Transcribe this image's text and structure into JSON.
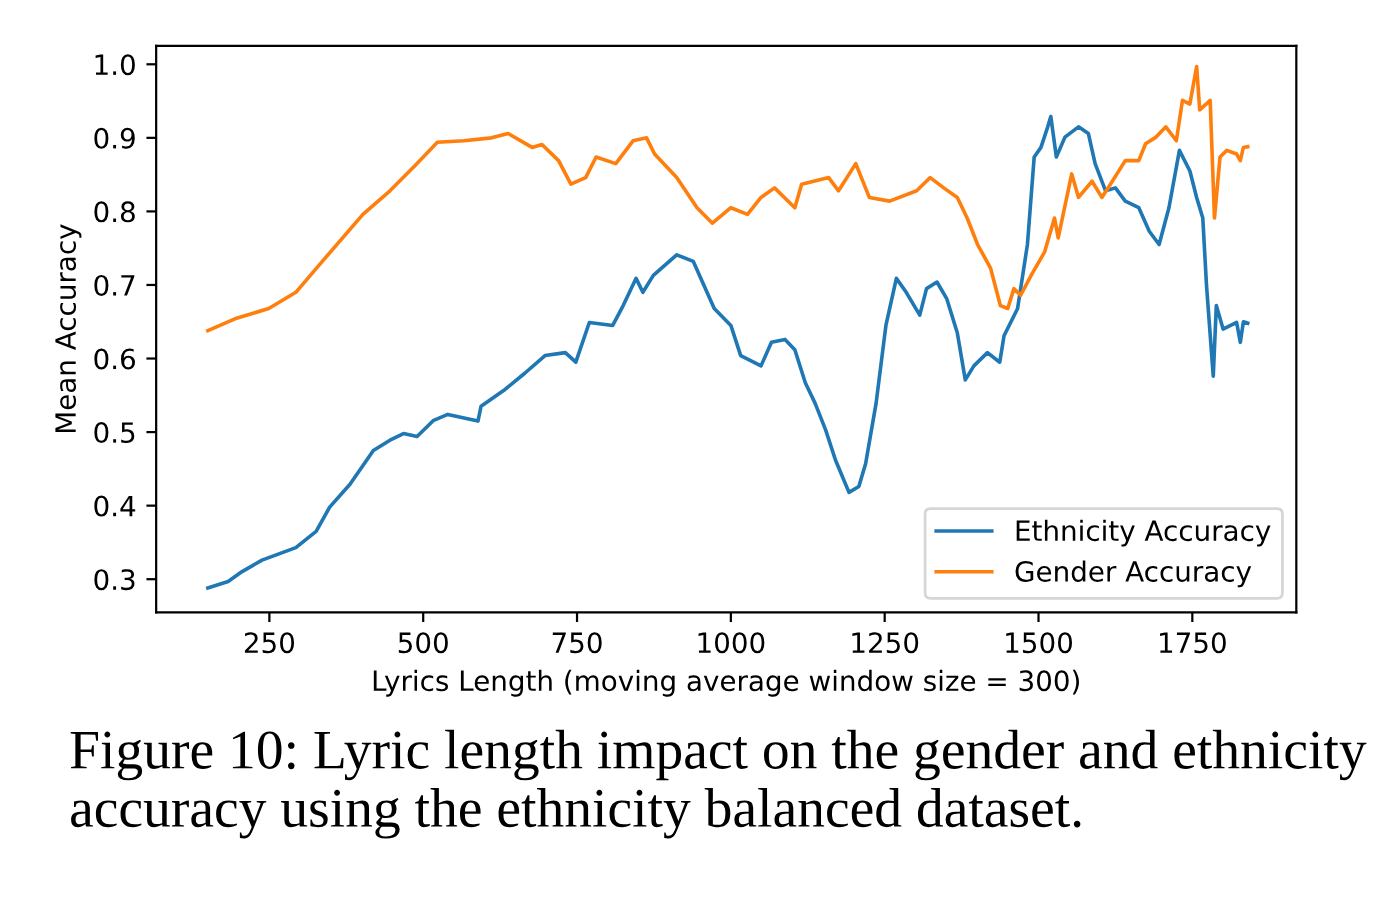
{
  "chart_data": {
    "type": "line",
    "xlabel": "Lyrics Length (moving average window size = 300)",
    "ylabel": "Mean Accuracy",
    "annotations": [
      "Figure 10: Lyric length impact on the gender and ethnicity accuracy using the ethnicity balanced dataset."
    ],
    "xlim": [
      66,
      1919
    ],
    "xticks": [
      250,
      500,
      750,
      1000,
      1250,
      1500,
      1750
    ],
    "ylim": [
      0.255,
      1.025
    ],
    "yticks": [
      {
        "value": 0.3,
        "label": "0.3"
      },
      {
        "value": 0.4,
        "label": "0.4"
      },
      {
        "value": 0.5,
        "label": "0.5"
      },
      {
        "value": 0.6,
        "label": "0.6"
      },
      {
        "value": 0.7,
        "label": "0.7"
      },
      {
        "value": 0.8,
        "label": "0.8"
      },
      {
        "value": 0.9,
        "label": "0.9"
      },
      {
        "value": 1.0,
        "label": "1.0"
      }
    ],
    "grid": false,
    "legend": "bottom right",
    "marker": "none",
    "line_style": "solid",
    "series": [
      {
        "name": "Ethnicity Accuracy",
        "color": "#1f77b4",
        "x": [
          150,
          183,
          205,
          238,
          293,
          326,
          348,
          381,
          419,
          446,
          468,
          490,
          517,
          540,
          589,
          594,
          633,
          665,
          698,
          731,
          748,
          770,
          808,
          825,
          846,
          857,
          874,
          912,
          939,
          973,
          1000,
          1016,
          1049,
          1066,
          1088,
          1104,
          1121,
          1137,
          1154,
          1170,
          1192,
          1208,
          1219,
          1236,
          1252,
          1269,
          1285,
          1307,
          1318,
          1335,
          1351,
          1368,
          1381,
          1395,
          1417,
          1437,
          1444,
          1466,
          1482,
          1493,
          1504,
          1515,
          1520,
          1529,
          1543,
          1565,
          1581,
          1592,
          1609,
          1625,
          1641,
          1663,
          1680,
          1696,
          1712,
          1729,
          1746,
          1757,
          1767,
          1773,
          1784,
          1789,
          1800,
          1822,
          1828,
          1833,
          1840
        ],
        "values": [
          0.288,
          0.297,
          0.31,
          0.326,
          0.343,
          0.365,
          0.398,
          0.429,
          0.475,
          0.489,
          0.498,
          0.494,
          0.516,
          0.524,
          0.515,
          0.535,
          0.558,
          0.58,
          0.604,
          0.608,
          0.595,
          0.649,
          0.645,
          0.672,
          0.709,
          0.69,
          0.713,
          0.741,
          0.732,
          0.668,
          0.645,
          0.604,
          0.59,
          0.622,
          0.626,
          0.612,
          0.567,
          0.539,
          0.503,
          0.462,
          0.418,
          0.426,
          0.457,
          0.539,
          0.645,
          0.709,
          0.69,
          0.659,
          0.695,
          0.704,
          0.681,
          0.635,
          0.571,
          0.59,
          0.608,
          0.595,
          0.631,
          0.668,
          0.755,
          0.874,
          0.887,
          0.915,
          0.929,
          0.874,
          0.901,
          0.915,
          0.906,
          0.865,
          0.828,
          0.832,
          0.814,
          0.805,
          0.773,
          0.755,
          0.805,
          0.883,
          0.855,
          0.819,
          0.791,
          0.7,
          0.576,
          0.672,
          0.64,
          0.649,
          0.622,
          0.65,
          0.648
        ]
      },
      {
        "name": "Gender Accuracy",
        "color": "#ff7f0e",
        "x": [
          150,
          194,
          249,
          293,
          336,
          402,
          446,
          490,
          523,
          566,
          611,
          638,
          677,
          693,
          720,
          740,
          764,
          781,
          813,
          841,
          863,
          876,
          912,
          945,
          970,
          1000,
          1027,
          1049,
          1071,
          1104,
          1115,
          1159,
          1175,
          1203,
          1225,
          1258,
          1302,
          1324,
          1346,
          1368,
          1384,
          1401,
          1422,
          1438,
          1450,
          1460,
          1471,
          1488,
          1510,
          1526,
          1532,
          1554,
          1565,
          1587,
          1603,
          1620,
          1641,
          1663,
          1674,
          1691,
          1707,
          1724,
          1734,
          1746,
          1757,
          1762,
          1779,
          1786,
          1795,
          1806,
          1822,
          1828,
          1833,
          1840
        ],
        "values": [
          0.638,
          0.654,
          0.668,
          0.69,
          0.732,
          0.796,
          0.828,
          0.865,
          0.894,
          0.896,
          0.9,
          0.906,
          0.887,
          0.891,
          0.869,
          0.837,
          0.846,
          0.874,
          0.865,
          0.896,
          0.9,
          0.878,
          0.846,
          0.805,
          0.784,
          0.805,
          0.796,
          0.819,
          0.832,
          0.805,
          0.837,
          0.846,
          0.828,
          0.865,
          0.819,
          0.814,
          0.828,
          0.846,
          0.832,
          0.819,
          0.791,
          0.755,
          0.723,
          0.672,
          0.668,
          0.695,
          0.686,
          0.713,
          0.745,
          0.791,
          0.764,
          0.851,
          0.819,
          0.841,
          0.819,
          0.841,
          0.869,
          0.869,
          0.892,
          0.901,
          0.915,
          0.896,
          0.951,
          0.946,
          0.997,
          0.938,
          0.951,
          0.791,
          0.874,
          0.883,
          0.878,
          0.869,
          0.887,
          0.888
        ]
      }
    ]
  }
}
